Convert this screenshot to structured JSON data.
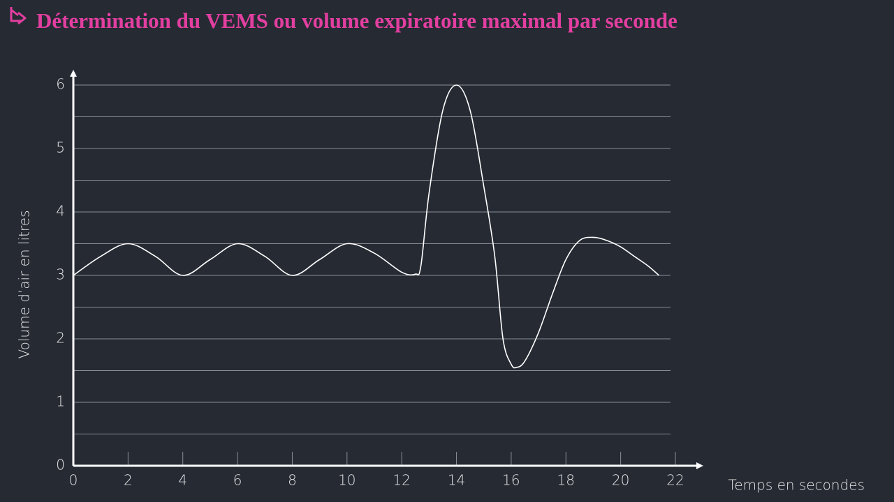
{
  "chart_data": {
    "type": "line",
    "title": "Détermination du VEMS ou volume expiratoire maximal par seconde",
    "x_label": "Temps en secondes",
    "y_label": "Volume d’air en litres",
    "x": [
      0,
      1,
      2,
      3,
      4,
      5,
      6,
      7,
      8,
      9,
      10,
      11,
      12,
      12.5,
      12.7,
      13,
      13.5,
      14,
      14.5,
      15,
      15.4,
      15.7,
      16,
      16.2,
      16.5,
      17,
      17.5,
      18,
      18.5,
      19,
      19.5,
      20,
      20.5,
      21,
      21.4
    ],
    "series": [
      {
        "name": "Volume",
        "color": "#ffffff",
        "values": [
          3.0,
          3.3,
          3.5,
          3.3,
          3.0,
          3.25,
          3.5,
          3.3,
          3.0,
          3.25,
          3.5,
          3.35,
          3.05,
          3.02,
          3.15,
          4.3,
          5.6,
          6.0,
          5.6,
          4.4,
          3.3,
          2.0,
          1.6,
          1.55,
          1.65,
          2.1,
          2.7,
          3.25,
          3.55,
          3.6,
          3.55,
          3.45,
          3.3,
          3.15,
          3.0
        ]
      }
    ],
    "xlim": [
      0,
      22
    ],
    "ylim": [
      0,
      6
    ],
    "xticks": [
      0,
      2,
      4,
      6,
      8,
      10,
      12,
      14,
      16,
      18,
      20,
      22
    ],
    "yticks": [
      0,
      1,
      2,
      3,
      4,
      5,
      6
    ],
    "ygrid": [
      0.5,
      1,
      1.5,
      2,
      2.5,
      3,
      3.5,
      4,
      4.5,
      5,
      5.5,
      6
    ],
    "grid": true,
    "axis_color": "#ffffff",
    "grid_color": "#8a8e96"
  }
}
